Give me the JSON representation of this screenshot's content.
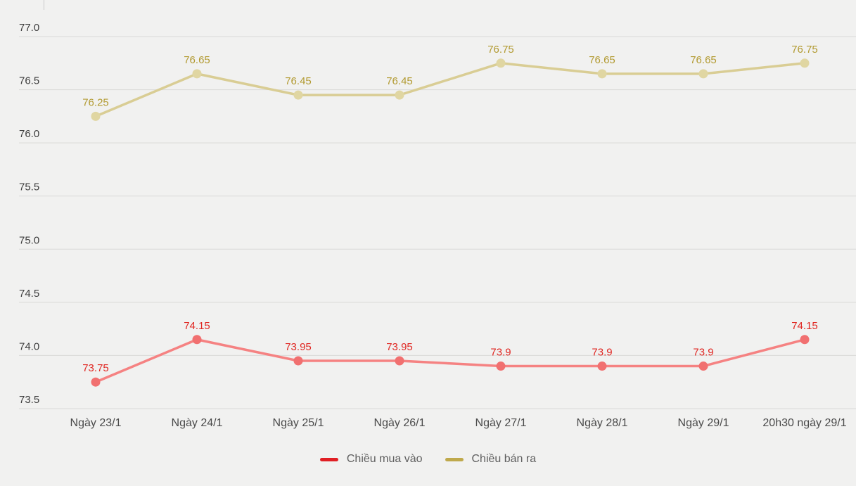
{
  "page": {
    "background_color": "#f1f1f0"
  },
  "chart_data": {
    "type": "line",
    "title": "",
    "xlabel": "",
    "ylabel": "",
    "categories": [
      "Ngày 23/1",
      "Ngày 24/1",
      "Ngày 25/1",
      "Ngày 26/1",
      "Ngày 27/1",
      "Ngày 28/1",
      "Ngày 29/1",
      "20h30 ngày 29/1"
    ],
    "series": [
      {
        "name": "Chiều mua vào",
        "values": [
          73.75,
          74.15,
          73.95,
          73.95,
          73.9,
          73.9,
          73.9,
          74.15
        ],
        "value_labels": [
          "73.75",
          "74.15",
          "73.95",
          "73.95",
          "73.9",
          "73.9",
          "73.9",
          "74.15"
        ],
        "line_color": "#f58282",
        "marker_color": "#f17070",
        "label_color": "#e02722",
        "legend_color": "#e01f24"
      },
      {
        "name": "Chiều bán ra",
        "values": [
          76.25,
          76.65,
          76.45,
          76.45,
          76.75,
          76.65,
          76.65,
          76.75
        ],
        "value_labels": [
          "76.25",
          "76.65",
          "76.45",
          "76.45",
          "76.75",
          "76.65",
          "76.65",
          "76.75"
        ],
        "line_color": "#d9cd94",
        "marker_color": "#e0d6a2",
        "label_color": "#b29a31",
        "legend_color": "#bfa94c"
      }
    ],
    "ytick_labels": [
      "77.0",
      "76.5",
      "76.0",
      "75.5",
      "75.0",
      "74.5",
      "74.0",
      "73.5"
    ],
    "yticks": [
      77.0,
      76.5,
      76.0,
      75.5,
      75.0,
      74.5,
      74.0,
      73.5
    ],
    "ylim": [
      73.5,
      77.0
    ],
    "grid": true,
    "grid_color": "#d9d9d7",
    "axis_tick_color": "#3d3d3d",
    "legend_position": "bottom"
  }
}
